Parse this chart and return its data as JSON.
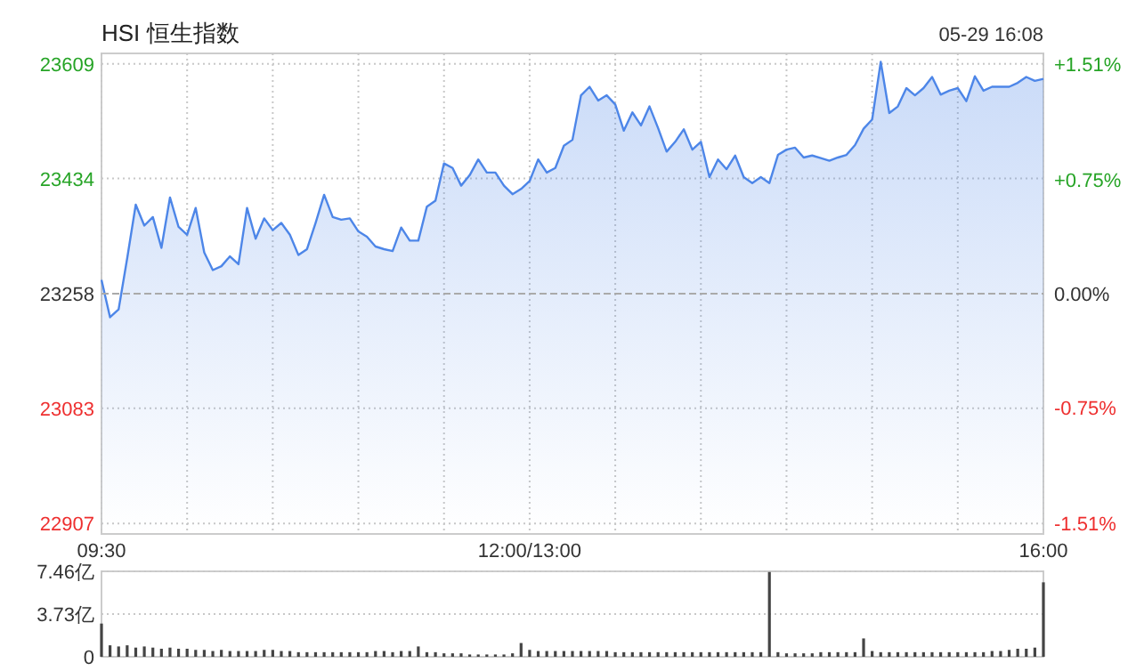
{
  "chart_data": [
    {
      "type": "area",
      "title": "HSI 恒生指数",
      "annotations": [
        "05-29 16:08"
      ],
      "categories": [
        "09:30",
        null,
        null,
        null,
        null,
        null,
        null,
        null,
        null,
        null,
        null,
        null,
        null,
        null,
        null,
        null,
        null,
        null,
        null,
        null,
        null,
        null,
        null,
        null,
        null,
        null,
        null,
        null,
        null,
        null,
        null,
        null,
        null,
        null,
        null,
        null,
        null,
        null,
        null,
        null,
        null,
        null,
        null,
        null,
        null,
        null,
        null,
        null,
        null,
        null,
        "12:00/13:00",
        null,
        null,
        null,
        null,
        null,
        null,
        null,
        null,
        null,
        null,
        null,
        null,
        null,
        null,
        null,
        null,
        null,
        null,
        null,
        null,
        null,
        null,
        null,
        null,
        null,
        null,
        null,
        null,
        null,
        null,
        null,
        null,
        null,
        null,
        null,
        null,
        null,
        null,
        null,
        null,
        null,
        null,
        null,
        null,
        null,
        null,
        null,
        null,
        null,
        null,
        null,
        null,
        null,
        null,
        null,
        null,
        null,
        null,
        null,
        "16:00"
      ],
      "series": [
        {
          "color": "#4d86e8",
          "values": [
            23279,
            23222,
            23234,
            23312,
            23394,
            23362,
            23375,
            23328,
            23405,
            23360,
            23348,
            23389,
            23321,
            23294,
            23300,
            23315,
            23303,
            23389,
            23342,
            23373,
            23355,
            23366,
            23348,
            23317,
            23326,
            23366,
            23409,
            23375,
            23371,
            23373,
            23353,
            23345,
            23330,
            23326,
            23323,
            23359,
            23339,
            23339,
            23391,
            23400,
            23457,
            23450,
            23423,
            23439,
            23463,
            23443,
            23443,
            23423,
            23410,
            23418,
            23430,
            23463,
            23443,
            23450,
            23484,
            23493,
            23561,
            23574,
            23553,
            23561,
            23547,
            23507,
            23535,
            23515,
            23544,
            23511,
            23475,
            23490,
            23509,
            23478,
            23490,
            23436,
            23463,
            23448,
            23469,
            23436,
            23427,
            23436,
            23427,
            23470,
            23478,
            23481,
            23466,
            23469,
            23465,
            23461,
            23466,
            23470,
            23485,
            23510,
            23524,
            23612,
            23534,
            23544,
            23572,
            23561,
            23572,
            23589,
            23562,
            23568,
            23572,
            23552,
            23590,
            23568,
            23574,
            23574,
            23574,
            23580,
            23589,
            23583,
            23586
          ]
        }
      ],
      "ylim": [
        22891,
        23625
      ],
      "yticks": [
        22907,
        23083,
        23258,
        23434,
        23609
      ],
      "y2lim": [
        -1.58,
        1.58
      ],
      "y2ticks": [
        {
          "value": -1.51,
          "label": "-1.51%"
        },
        {
          "value": -0.75,
          "label": "-0.75%"
        },
        {
          "value": 0,
          "label": "0.00%"
        },
        {
          "value": 0.75,
          "label": "+0.75%"
        },
        {
          "value": 1.51,
          "label": "+1.51%"
        }
      ],
      "ref_lines": [
        {
          "axis": "y",
          "value": 23258,
          "color": "#aaaaaa",
          "line_style": "dashed"
        }
      ],
      "grid": true
    },
    {
      "type": "bar",
      "categories": [
        null,
        null,
        null,
        null,
        null,
        null,
        null,
        null,
        null,
        null,
        null,
        null,
        null,
        null,
        null,
        null,
        null,
        null,
        null,
        null,
        null,
        null,
        null,
        null,
        null,
        null,
        null,
        null,
        null,
        null,
        null,
        null,
        null,
        null,
        null,
        null,
        null,
        null,
        null,
        null,
        null,
        null,
        null,
        null,
        null,
        null,
        null,
        null,
        null,
        null,
        null,
        null,
        null,
        null,
        null,
        null,
        null,
        null,
        null,
        null,
        null,
        null,
        null,
        null,
        null,
        null,
        null,
        null,
        null,
        null,
        null,
        null,
        null,
        null,
        null,
        null,
        null,
        null,
        null,
        null,
        null,
        null,
        null,
        null,
        null,
        null,
        null,
        null,
        null,
        null,
        null,
        null,
        null,
        null,
        null,
        null,
        null,
        null,
        null,
        null,
        null,
        null,
        null,
        null,
        null,
        null,
        null,
        null,
        null,
        null,
        null
      ],
      "series": [
        {
          "color": "#444444",
          "values": [
            2.9,
            1.0,
            0.9,
            1.0,
            0.8,
            0.9,
            0.8,
            0.7,
            0.8,
            0.7,
            0.7,
            0.6,
            0.6,
            0.5,
            0.6,
            0.5,
            0.5,
            0.5,
            0.5,
            0.6,
            0.6,
            0.5,
            0.5,
            0.4,
            0.4,
            0.4,
            0.4,
            0.4,
            0.4,
            0.4,
            0.4,
            0.4,
            0.5,
            0.5,
            0.4,
            0.5,
            0.5,
            0.9,
            0.4,
            0.4,
            0.3,
            0.3,
            0.3,
            0.2,
            0.2,
            0.2,
            0.2,
            0.2,
            0.3,
            1.2,
            0.6,
            0.5,
            0.5,
            0.5,
            0.5,
            0.5,
            0.5,
            0.5,
            0.5,
            0.5,
            0.4,
            0.4,
            0.4,
            0.4,
            0.4,
            0.4,
            0.4,
            0.4,
            0.4,
            0.4,
            0.4,
            0.4,
            0.4,
            0.4,
            0.4,
            0.4,
            0.4,
            0.4,
            7.4,
            0.4,
            0.3,
            0.3,
            0.3,
            0.3,
            0.4,
            0.4,
            0.4,
            0.4,
            0.4,
            1.6,
            0.5,
            0.4,
            0.4,
            0.4,
            0.4,
            0.4,
            0.4,
            0.4,
            0.4,
            0.4,
            0.4,
            0.4,
            0.4,
            0.4,
            0.5,
            0.5,
            0.6,
            0.7,
            0.7,
            0.8,
            6.5
          ]
        }
      ],
      "ylim": [
        0,
        7.46
      ],
      "yticks": [
        0,
        {
          "value": 3.73,
          "label": "3.73亿"
        },
        {
          "value": 7.46,
          "label": "7.46亿"
        }
      ],
      "tick_labels": "y",
      "grid": "y"
    }
  ]
}
